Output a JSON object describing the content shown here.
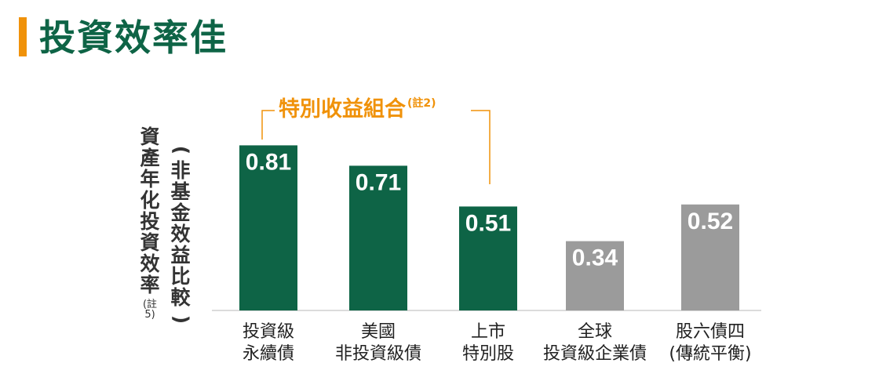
{
  "page": {
    "title": "投資效率佳"
  },
  "chart_data": {
    "type": "bar",
    "ylabel_main": "資產年化投資效率",
    "ylabel_note": "(註5)",
    "ylabel_sub": "(非基金效益比較)",
    "bracket_label": "特別收益組合",
    "bracket_note": "(註2)",
    "categories": [
      [
        "投資級",
        "永續債"
      ],
      [
        "美國",
        "非投資級債"
      ],
      [
        "上市",
        "特別股"
      ],
      [
        "全球",
        "投資級企業債"
      ],
      [
        "股六債四",
        "(傳統平衡)"
      ]
    ],
    "values": [
      0.81,
      0.71,
      0.51,
      0.34,
      0.52
    ],
    "value_labels": [
      "0.81",
      "0.71",
      "0.51",
      "0.34",
      "0.52"
    ],
    "colors": [
      "#0e6446",
      "#0e6446",
      "#0e6446",
      "#9b9b9b",
      "#9b9b9b"
    ],
    "bracket_colors": {
      "line": "#f0920a"
    }
  }
}
